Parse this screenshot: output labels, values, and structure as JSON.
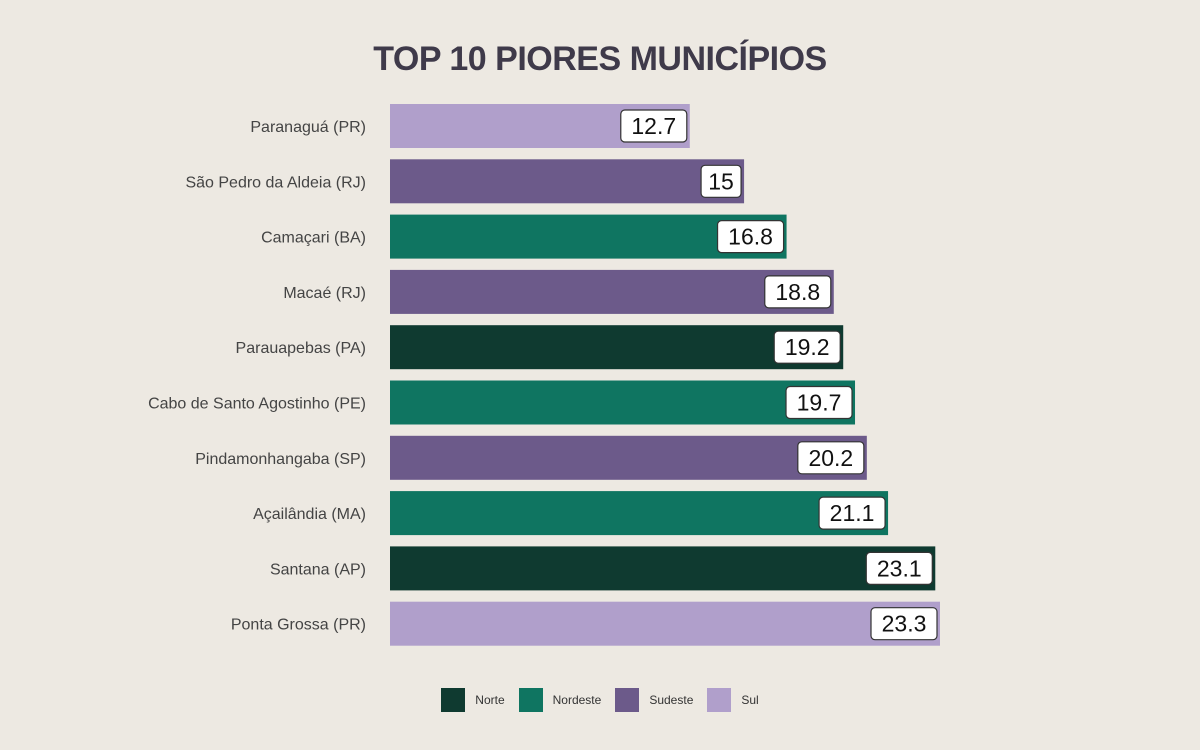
{
  "chart_data": {
    "type": "bar",
    "orientation": "horizontal",
    "title": "TOP 10 PIORES MUNICÍPIOS",
    "categories": [
      "Paranaguá (PR)",
      "São Pedro da Aldeia (RJ)",
      "Camaçari (BA)",
      "Macaé (RJ)",
      "Parauapebas (PA)",
      "Cabo de Santo Agostinho (PE)",
      "Pindamonhangaba (SP)",
      "Açailândia (MA)",
      "Santana (AP)",
      "Ponta Grossa (PR)"
    ],
    "values": [
      12.7,
      15,
      16.8,
      18.8,
      19.2,
      19.7,
      20.2,
      21.1,
      23.1,
      23.3
    ],
    "data_labels": [
      "12.7",
      "15",
      "16.8",
      "18.8",
      "19.2",
      "19.7",
      "20.2",
      "21.1",
      "23.1",
      "23.3"
    ],
    "regions": [
      "Sul",
      "Sudeste",
      "Nordeste",
      "Sudeste",
      "Norte",
      "Nordeste",
      "Sudeste",
      "Nordeste",
      "Norte",
      "Sul"
    ],
    "xlim": [
      0,
      23.5
    ],
    "grid": false,
    "legend_position": "bottom",
    "legend": [
      {
        "name": "Norte",
        "color": "#0f3a30"
      },
      {
        "name": "Nordeste",
        "color": "#0f7561"
      },
      {
        "name": "Sudeste",
        "color": "#6c5a8a"
      },
      {
        "name": "Sul",
        "color": "#b09fcb"
      }
    ]
  }
}
